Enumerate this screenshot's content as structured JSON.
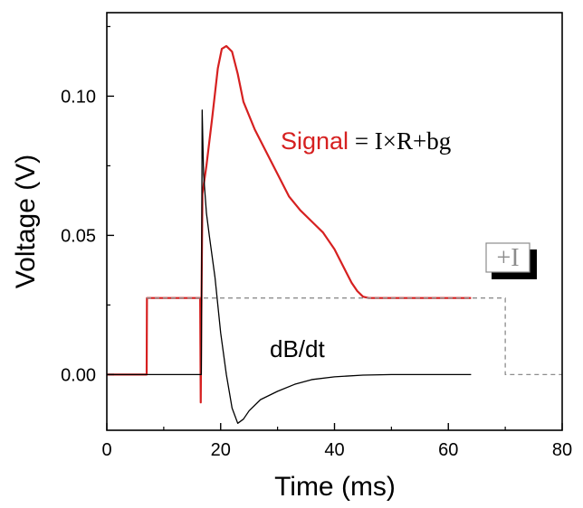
{
  "chart_data": {
    "type": "line",
    "xlabel": "Time (ms)",
    "ylabel": "Voltage (V)",
    "xlim": [
      0,
      80
    ],
    "ylim": [
      -0.02,
      0.13
    ],
    "xticks": [
      0,
      20,
      40,
      60,
      80
    ],
    "yticks": [
      0.0,
      0.05,
      0.1
    ],
    "xtick_labels": [
      "0",
      "20",
      "40",
      "60",
      "80"
    ],
    "ytick_labels": [
      "0.00",
      "0.05",
      "0.10"
    ],
    "grid": false,
    "series": [
      {
        "name": "Signal",
        "color": "#d62020",
        "style": "solid",
        "points": [
          [
            0,
            0.0
          ],
          [
            7,
            0.0
          ],
          [
            7.05,
            0.0275
          ],
          [
            16.3,
            0.0275
          ],
          [
            16.4,
            0.0275
          ],
          [
            16.5,
            -0.01
          ],
          [
            16.6,
            0.02
          ],
          [
            16.8,
            0.065
          ],
          [
            17.5,
            0.075
          ],
          [
            18.5,
            0.092
          ],
          [
            19.5,
            0.11
          ],
          [
            20.2,
            0.117
          ],
          [
            21,
            0.118
          ],
          [
            22,
            0.116
          ],
          [
            23,
            0.108
          ],
          [
            24,
            0.098
          ],
          [
            26,
            0.088
          ],
          [
            28,
            0.08
          ],
          [
            30,
            0.072
          ],
          [
            32,
            0.064
          ],
          [
            34,
            0.059
          ],
          [
            36,
            0.055
          ],
          [
            38,
            0.051
          ],
          [
            39,
            0.048
          ],
          [
            40,
            0.045
          ],
          [
            41,
            0.041
          ],
          [
            42,
            0.037
          ],
          [
            43,
            0.033
          ],
          [
            44,
            0.03
          ],
          [
            45,
            0.028
          ],
          [
            46,
            0.0275
          ],
          [
            50,
            0.0275
          ],
          [
            55,
            0.0275
          ],
          [
            60,
            0.0275
          ],
          [
            64,
            0.0275
          ]
        ]
      },
      {
        "name": "dB/dt",
        "color": "#000000",
        "style": "solid",
        "points": [
          [
            0,
            0.0
          ],
          [
            16.4,
            0.0
          ],
          [
            16.6,
            0.0
          ],
          [
            16.75,
            0.095
          ],
          [
            17.0,
            0.072
          ],
          [
            17.5,
            0.058
          ],
          [
            18,
            0.05
          ],
          [
            19,
            0.035
          ],
          [
            20,
            0.015
          ],
          [
            21,
            0.0
          ],
          [
            22,
            -0.012
          ],
          [
            23,
            -0.0175
          ],
          [
            24,
            -0.016
          ],
          [
            25,
            -0.013
          ],
          [
            27,
            -0.009
          ],
          [
            30,
            -0.006
          ],
          [
            33,
            -0.0035
          ],
          [
            36,
            -0.0018
          ],
          [
            40,
            -0.0008
          ],
          [
            45,
            -0.0002
          ],
          [
            50,
            0.0
          ],
          [
            60,
            0.0
          ],
          [
            64,
            0.0
          ]
        ]
      },
      {
        "name": "",
        "color": "#8c8c8c",
        "style": "dashed",
        "points": [
          [
            7,
            0.0275
          ],
          [
            70,
            0.0275
          ],
          [
            70,
            0.0
          ],
          [
            80,
            0.0
          ]
        ]
      }
    ],
    "annotations": {
      "signal_word": "Signal",
      "equation": " = I×R+bg",
      "dbdt_label": "dB/dt",
      "current_label": "+I"
    }
  },
  "colors": {
    "signal": "#d62020",
    "dbdt": "#000000",
    "current": "#8c8c8c",
    "axis": "#000000"
  }
}
